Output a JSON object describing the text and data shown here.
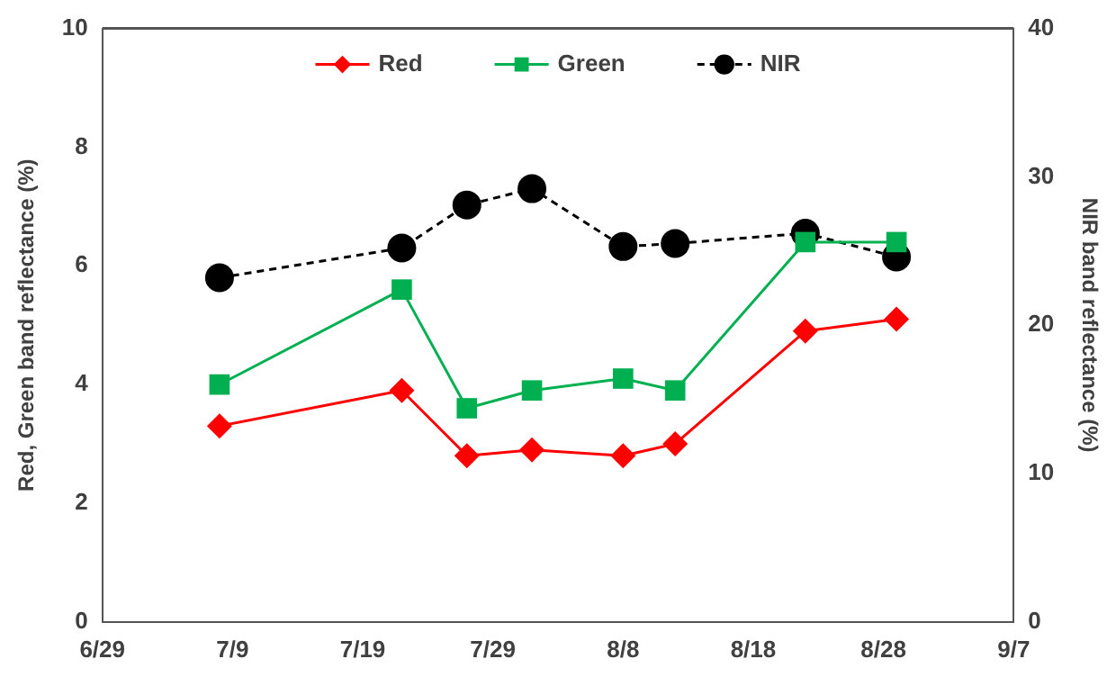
{
  "chart_data": {
    "type": "line",
    "ylabel": "Red, Green band reflectance (%)",
    "y2label": "NIR band reflectance (%)",
    "x": [
      "--07-08",
      "--07-22",
      "--07-27",
      "--08-01",
      "--08-08",
      "--08-12",
      "--08-22",
      "--08-29"
    ],
    "xlim": [
      "--06-29",
      "--09-07"
    ],
    "xticks": [
      {
        "value": "--06-29",
        "label": "6/29"
      },
      {
        "value": "--07-09",
        "label": "7/9"
      },
      {
        "value": "--07-19",
        "label": "7/19"
      },
      {
        "value": "--07-29",
        "label": "7/29"
      },
      {
        "value": "--08-08",
        "label": "8/8"
      },
      {
        "value": "--08-18",
        "label": "8/18"
      },
      {
        "value": "--08-28",
        "label": "8/28"
      },
      {
        "value": "--09-07",
        "label": "9/7"
      }
    ],
    "ylim": [
      0,
      10
    ],
    "yticks": [
      0,
      2,
      4,
      6,
      8,
      10
    ],
    "y2lim": [
      0,
      40
    ],
    "y2ticks": [
      0,
      10,
      20,
      30,
      40
    ],
    "grid": false,
    "legend": "top",
    "series": [
      {
        "name": "Red",
        "color": "#ff0000",
        "marker": "diamond",
        "line_style": "solid",
        "values": [
          3.3,
          3.9,
          2.8,
          2.9,
          2.8,
          3.0,
          4.9,
          5.1
        ]
      },
      {
        "name": "Green",
        "color": "#00b050",
        "marker": "square",
        "line_style": "solid",
        "values": [
          4.0,
          5.6,
          3.6,
          3.9,
          4.1,
          3.9,
          6.4,
          6.4
        ]
      },
      {
        "name": "NIR",
        "color": "#000000",
        "marker": "circle",
        "line_style": "dashed",
        "axis": "y2",
        "values": [
          23.2,
          25.2,
          28.1,
          29.2,
          25.3,
          25.5,
          26.2,
          24.6
        ]
      }
    ]
  }
}
